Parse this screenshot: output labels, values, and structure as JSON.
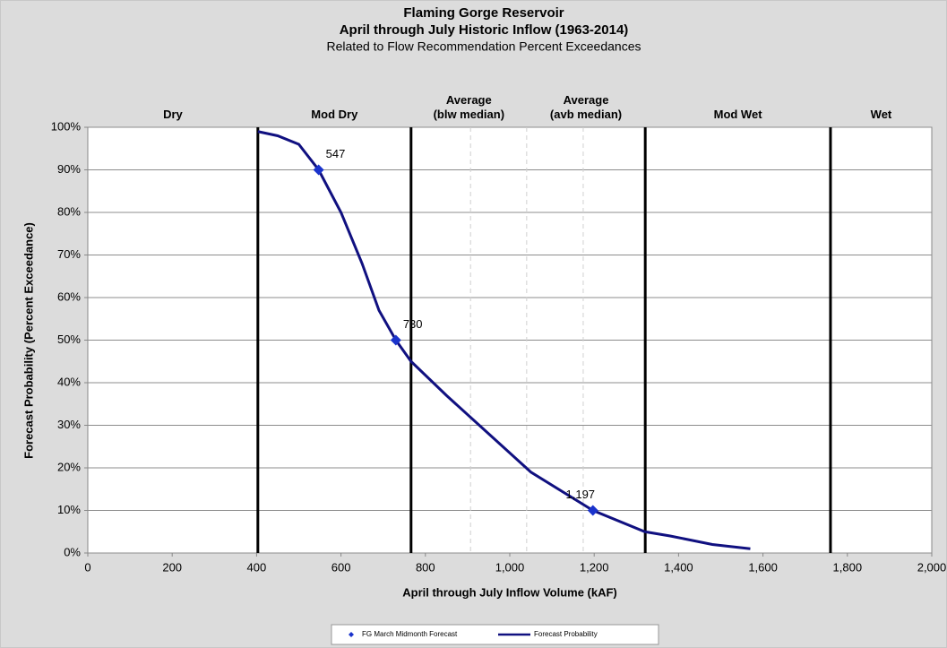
{
  "chart_data": {
    "type": "line",
    "title": "Flaming Gorge Reservoir",
    "subtitle": "April through July Historic Inflow (1963-2014)",
    "subtitle2": "Related to Flow Recommendation Percent Exceedances",
    "x_label": "April through July Inflow Volume (kAF)",
    "y_label": "Forecast Probability (Percent Exceedance)",
    "xlim": [
      0,
      2000
    ],
    "ylim": [
      0,
      100
    ],
    "xticks": [
      0,
      200,
      400,
      600,
      800,
      {
        "value": 1000,
        "label": "1,000"
      },
      {
        "value": 1200,
        "label": "1,200"
      },
      {
        "value": 1400,
        "label": "1,400"
      },
      {
        "value": 1600,
        "label": "1,600"
      },
      {
        "value": 1800,
        "label": "1,800"
      },
      {
        "value": 2000,
        "label": "2,000"
      }
    ],
    "yticks": [
      {
        "value": 0,
        "label": "0%"
      },
      {
        "value": 10,
        "label": "10%"
      },
      {
        "value": 20,
        "label": "20%"
      },
      {
        "value": 30,
        "label": "30%"
      },
      {
        "value": 40,
        "label": "40%"
      },
      {
        "value": 50,
        "label": "50%"
      },
      {
        "value": 60,
        "label": "60%"
      },
      {
        "value": 70,
        "label": "70%"
      },
      {
        "value": 80,
        "label": "80%"
      },
      {
        "value": 90,
        "label": "90%"
      },
      {
        "value": 100,
        "label": "100%"
      }
    ],
    "grid": true,
    "zones": [
      {
        "label": "Dry",
        "from": 0,
        "to": 403
      },
      {
        "label": "Mod Dry",
        "from": 403,
        "to": 766
      },
      {
        "label": "Average\n(blw median)",
        "from": 766,
        "to": 1040
      },
      {
        "label": "Average\n(avb median)",
        "from": 1040,
        "to": 1321
      },
      {
        "label": "Mod Wet",
        "from": 1321,
        "to": 1760
      },
      {
        "label": "Wet",
        "from": 1760,
        "to": 2000
      }
    ],
    "solid_lines": [
      403,
      766,
      1321,
      1760
    ],
    "dashed_lines": [
      907,
      1040,
      1174
    ],
    "series": [
      {
        "name": "FG March Midmonth Forecast",
        "type": "scatter",
        "color": "#1a33cc",
        "x": [
          547,
          730,
          1197
        ],
        "x_labels": [
          "547",
          "730",
          "1,197"
        ],
        "values": [
          90,
          50,
          10
        ]
      },
      {
        "name": "Forecast Probability",
        "type": "line",
        "color": "#101080",
        "x": [
          403,
          450,
          500,
          547,
          600,
          650,
          690,
          730,
          766,
          850,
          950,
          1050,
          1197,
          1320,
          1380,
          1480,
          1570
        ],
        "values": [
          99,
          98,
          96,
          90,
          80,
          68,
          57,
          50,
          45,
          37,
          28,
          19,
          10,
          5,
          4,
          2,
          1
        ]
      }
    ]
  }
}
